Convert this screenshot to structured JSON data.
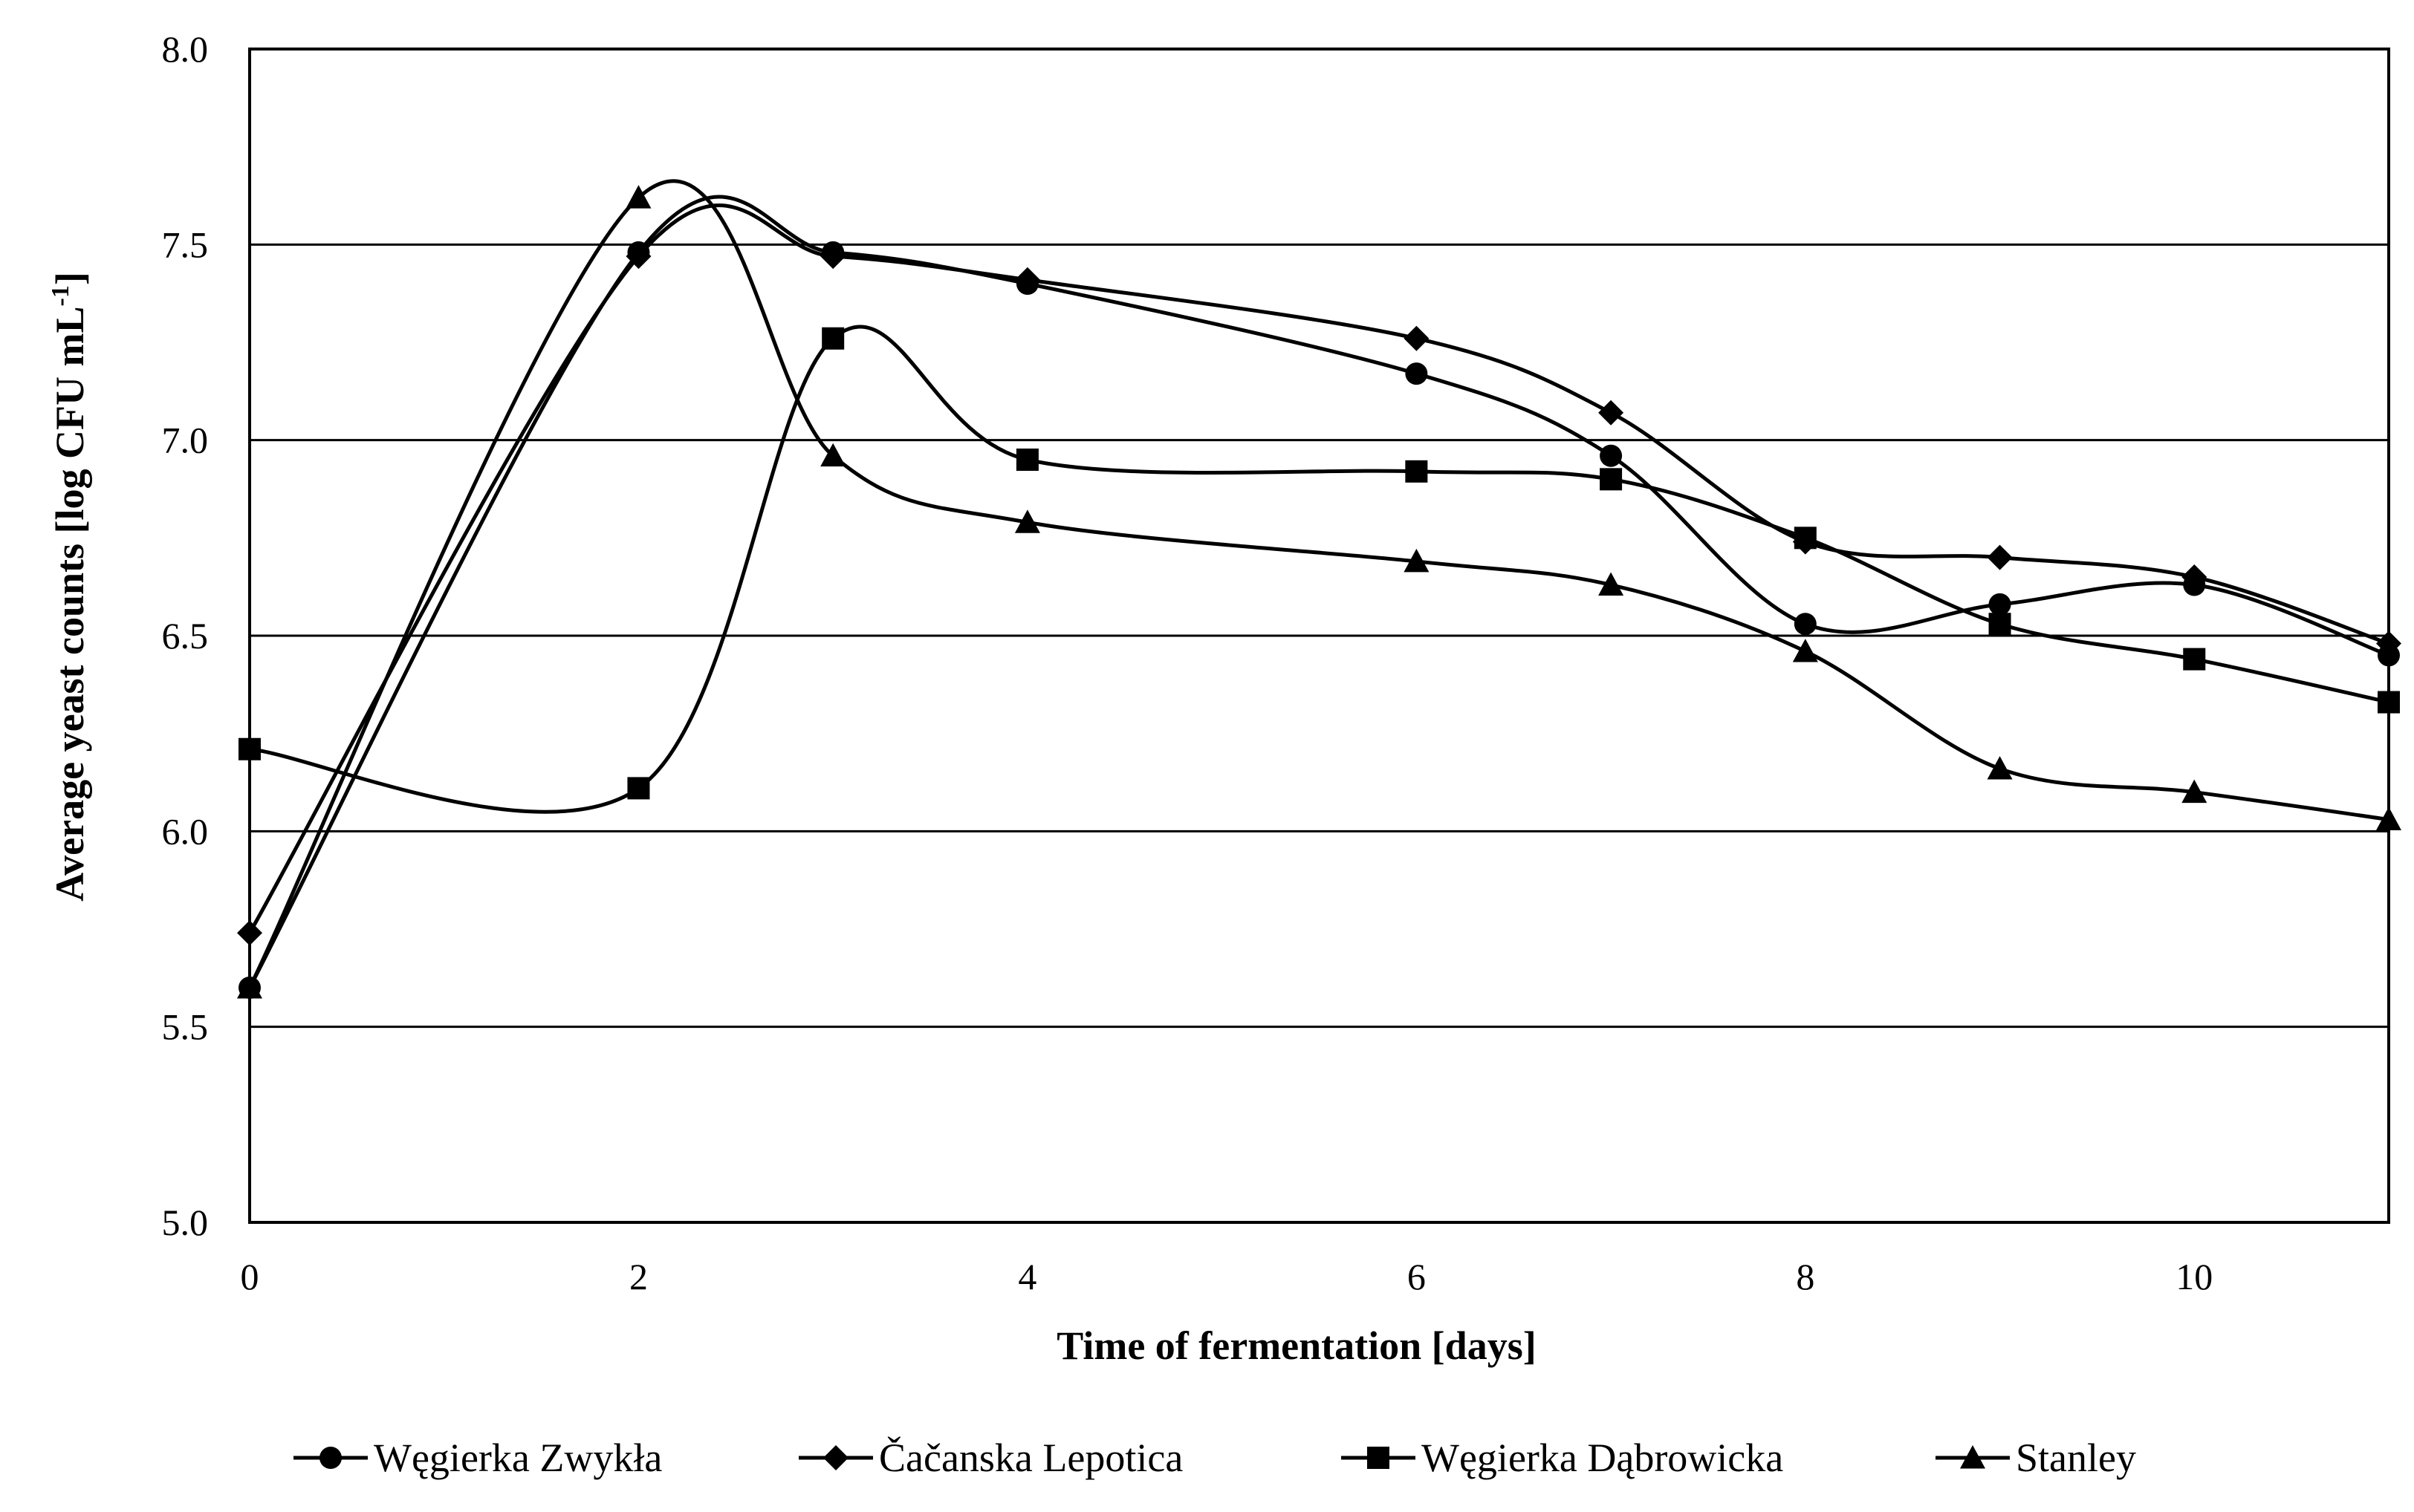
{
  "chart_data": {
    "type": "line",
    "title": "",
    "xlabel": "Time of fermentation [days]",
    "ylabel_main": "Average yeast counts [log CFU mL",
    "ylabel_sup": "-1",
    "ylabel_end": "]",
    "xlim": [
      0,
      11
    ],
    "ylim": [
      5.0,
      8.0
    ],
    "x_ticks": [
      0,
      2,
      4,
      6,
      8,
      10
    ],
    "x_tick_labels": [
      "0",
      "2",
      "4",
      "6",
      "8",
      "10"
    ],
    "y_ticks": [
      5.0,
      5.5,
      6.0,
      6.5,
      7.0,
      7.5,
      8.0
    ],
    "y_tick_labels": [
      "5.0",
      "5.5",
      "6.0",
      "6.5",
      "7.0",
      "7.5",
      "8.0"
    ],
    "grid": "horizontal",
    "legend_position": "bottom",
    "x": [
      0,
      2,
      3,
      4,
      6,
      7,
      8,
      9,
      10,
      11
    ],
    "series": [
      {
        "name": "Węgierka Zwykła",
        "marker": "circle",
        "values": [
          5.6,
          7.48,
          7.48,
          7.4,
          7.17,
          6.96,
          6.53,
          6.58,
          6.63,
          6.45
        ]
      },
      {
        "name": "Čačanska Lepotica",
        "marker": "diamond",
        "values": [
          5.74,
          7.47,
          7.47,
          7.41,
          7.26,
          7.07,
          6.74,
          6.7,
          6.65,
          6.48
        ]
      },
      {
        "name": "Węgierka Dąbrowicka",
        "marker": "square",
        "values": [
          6.21,
          6.11,
          7.26,
          6.95,
          6.92,
          6.9,
          6.75,
          6.53,
          6.44,
          6.33
        ]
      },
      {
        "name": "Stanley",
        "marker": "triangle",
        "values": [
          5.6,
          7.62,
          6.96,
          6.79,
          6.69,
          6.63,
          6.46,
          6.16,
          6.1,
          6.03
        ]
      }
    ]
  }
}
